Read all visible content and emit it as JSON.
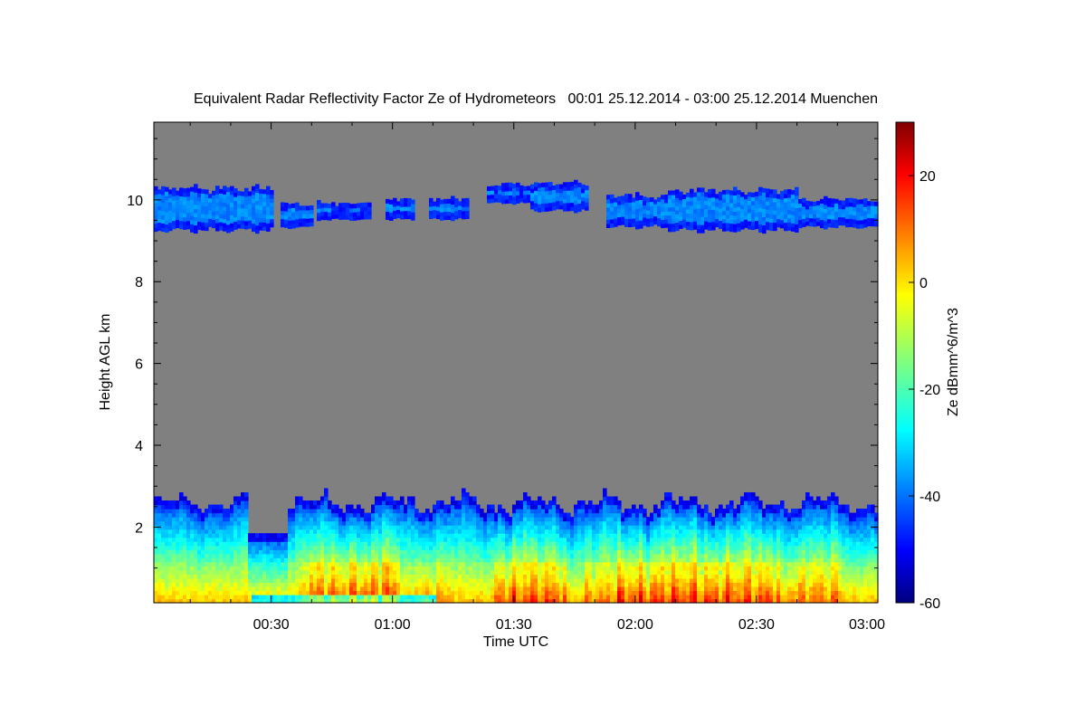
{
  "chart_data": {
    "type": "heatmap",
    "title": "Equivalent Radar Reflectivity Factor Ze of Hydrometeors   00:01 25.12.2014 - 03:00 25.12.2014 Muenchen",
    "xlabel": "Time UTC",
    "ylabel": "Height AGL km",
    "x_ticks": [
      {
        "value": 30,
        "label": "00:30"
      },
      {
        "value": 60,
        "label": "01:00"
      },
      {
        "value": 90,
        "label": "01:30"
      },
      {
        "value": 120,
        "label": "02:00"
      },
      {
        "value": 150,
        "label": "02:30"
      },
      {
        "value": 180,
        "label": "03:00"
      }
    ],
    "xlim_minutes": [
      1,
      180
    ],
    "y_ticks": [
      {
        "value": 2,
        "label": "2"
      },
      {
        "value": 4,
        "label": "4"
      },
      {
        "value": 6,
        "label": "6"
      },
      {
        "value": 8,
        "label": "8"
      },
      {
        "value": 10,
        "label": "10"
      }
    ],
    "ylim": [
      0.15,
      11.9
    ],
    "no_data_color": "#808080",
    "colorbar": {
      "label": "Ze dBmm^6/m^3",
      "range": [
        -60,
        30
      ],
      "ticks": [
        {
          "value": -60,
          "label": "-60"
        },
        {
          "value": -40,
          "label": "-40"
        },
        {
          "value": -20,
          "label": "-20"
        },
        {
          "value": 0,
          "label": "0"
        },
        {
          "value": 20,
          "label": "20"
        }
      ],
      "colormap": "jet"
    },
    "features": [
      {
        "name": "upper cirrus layer",
        "height_km": [
          9.2,
          10.4
        ],
        "ze_dbz": -38
      },
      {
        "name": "low precipitation layer",
        "top_km": [
          1.8,
          2.9
        ],
        "ze_dbz_max": 22,
        "bright_band_km": 1.0
      }
    ]
  }
}
